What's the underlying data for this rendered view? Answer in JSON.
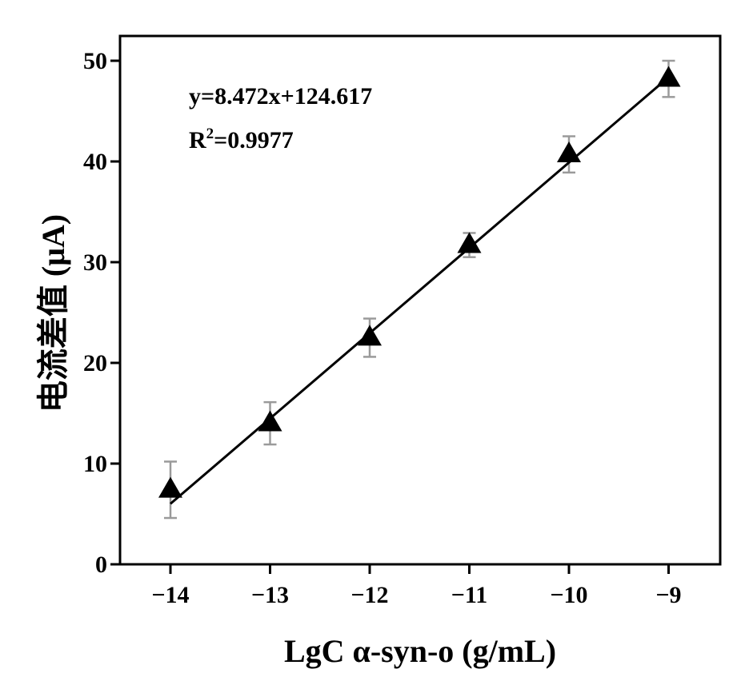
{
  "chart_data": {
    "type": "scatter",
    "title": "",
    "xlabel": "LgC α-syn-o (g/mL)",
    "ylabel": "电流差值 (μA)",
    "xlim": [
      -14.5,
      -8.5
    ],
    "ylim": [
      0,
      52
    ],
    "x_ticks": [
      -14,
      -13,
      -12,
      -11,
      -10,
      -9
    ],
    "x_tick_labels": [
      "−14",
      "−13",
      "−12",
      "−11",
      "−10",
      "−9"
    ],
    "y_ticks": [
      0,
      10,
      20,
      30,
      40,
      50
    ],
    "y_tick_labels": [
      "0",
      "10",
      "20",
      "30",
      "40",
      "50"
    ],
    "grid": false,
    "legend": "none",
    "series": [
      {
        "marker": "triangle",
        "color": "#000000",
        "x": [
          -14,
          -13,
          -12,
          -11,
          -10,
          -9
        ],
        "y": [
          7.4,
          14.0,
          22.5,
          31.7,
          40.7,
          48.2
        ],
        "error": [
          2.8,
          2.1,
          1.9,
          1.2,
          1.8,
          1.8
        ]
      }
    ],
    "fit_line": {
      "slope": 8.472,
      "intercept": 124.617,
      "x_range": [
        -14,
        -9
      ]
    },
    "annotations": {
      "equation": "y=8.472x+124.617",
      "r2_prefix": "R",
      "r2_sup": "2",
      "r2_value": "=0.9977"
    }
  }
}
